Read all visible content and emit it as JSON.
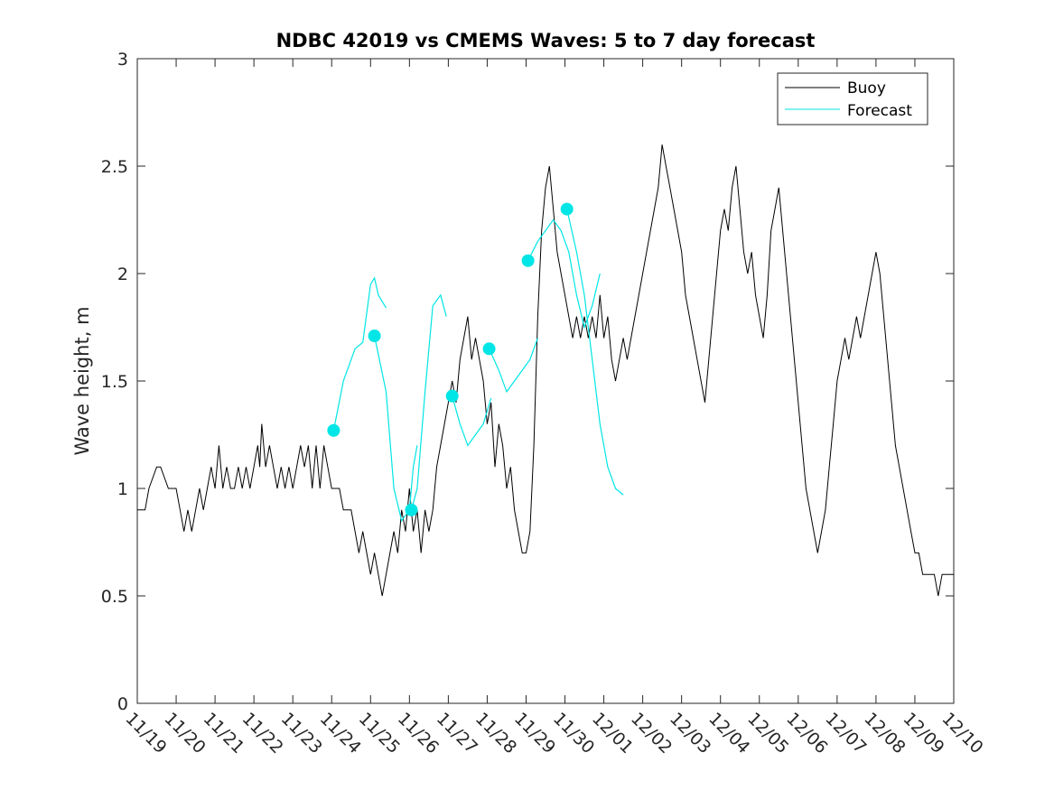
{
  "chart_data": {
    "type": "line",
    "title": "NDBC 42019 vs CMEMS Waves: 5 to 7 day forecast",
    "xlabel": "",
    "ylabel": "Wave height, m",
    "xlim": [
      0,
      21
    ],
    "ylim": [
      0,
      3
    ],
    "yticks": [
      0,
      0.5,
      1,
      1.5,
      2,
      2.5,
      3
    ],
    "ytick_labels": [
      "0",
      "0.5",
      "1",
      "1.5",
      "2",
      "2.5",
      "3"
    ],
    "xtick_labels": [
      "11/19",
      "11/20",
      "11/21",
      "11/22",
      "11/23",
      "11/24",
      "11/25",
      "11/26",
      "11/27",
      "11/28",
      "11/29",
      "11/30",
      "12/01",
      "12/02",
      "12/03",
      "12/04",
      "12/05",
      "12/06",
      "12/07",
      "12/08",
      "12/09",
      "12/10"
    ],
    "legend": {
      "position": "top-right",
      "entries": [
        "Buoy",
        "Forecast"
      ]
    },
    "colors": {
      "buoy": "#000000",
      "forecast": "#00e5e5",
      "axis": "#262626"
    },
    "buoy": {
      "name": "Buoy",
      "points": [
        [
          0,
          0.9
        ],
        [
          0.2,
          0.9
        ],
        [
          0.3,
          1.0
        ],
        [
          0.5,
          1.1
        ],
        [
          0.6,
          1.1
        ],
        [
          0.8,
          1.0
        ],
        [
          1.0,
          1.0
        ],
        [
          1.1,
          0.9
        ],
        [
          1.2,
          0.8
        ],
        [
          1.3,
          0.9
        ],
        [
          1.4,
          0.8
        ],
        [
          1.5,
          0.9
        ],
        [
          1.6,
          1.0
        ],
        [
          1.7,
          0.9
        ],
        [
          1.8,
          1.0
        ],
        [
          1.9,
          1.1
        ],
        [
          2.0,
          1.0
        ],
        [
          2.1,
          1.2
        ],
        [
          2.2,
          1.0
        ],
        [
          2.3,
          1.1
        ],
        [
          2.4,
          1.0
        ],
        [
          2.5,
          1.0
        ],
        [
          2.6,
          1.1
        ],
        [
          2.7,
          1.0
        ],
        [
          2.8,
          1.1
        ],
        [
          2.9,
          1.0
        ],
        [
          3.0,
          1.1
        ],
        [
          3.1,
          1.2
        ],
        [
          3.15,
          1.1
        ],
        [
          3.2,
          1.3
        ],
        [
          3.3,
          1.1
        ],
        [
          3.4,
          1.2
        ],
        [
          3.5,
          1.1
        ],
        [
          3.6,
          1.0
        ],
        [
          3.7,
          1.1
        ],
        [
          3.8,
          1.0
        ],
        [
          3.9,
          1.1
        ],
        [
          4.0,
          1.0
        ],
        [
          4.1,
          1.1
        ],
        [
          4.2,
          1.2
        ],
        [
          4.3,
          1.1
        ],
        [
          4.4,
          1.2
        ],
        [
          4.5,
          1.0
        ],
        [
          4.6,
          1.2
        ],
        [
          4.7,
          1.0
        ],
        [
          4.8,
          1.2
        ],
        [
          4.9,
          1.1
        ],
        [
          5.0,
          1.0
        ],
        [
          5.2,
          1.0
        ],
        [
          5.3,
          0.9
        ],
        [
          5.5,
          0.9
        ],
        [
          5.6,
          0.8
        ],
        [
          5.7,
          0.7
        ],
        [
          5.8,
          0.8
        ],
        [
          5.9,
          0.7
        ],
        [
          6.0,
          0.6
        ],
        [
          6.1,
          0.7
        ],
        [
          6.2,
          0.6
        ],
        [
          6.3,
          0.5
        ],
        [
          6.4,
          0.6
        ],
        [
          6.5,
          0.7
        ],
        [
          6.6,
          0.8
        ],
        [
          6.7,
          0.7
        ],
        [
          6.8,
          0.9
        ],
        [
          6.9,
          0.8
        ],
        [
          7.0,
          1.0
        ],
        [
          7.1,
          0.8
        ],
        [
          7.2,
          0.9
        ],
        [
          7.3,
          0.7
        ],
        [
          7.4,
          0.9
        ],
        [
          7.5,
          0.8
        ],
        [
          7.6,
          0.9
        ],
        [
          7.7,
          1.1
        ],
        [
          7.8,
          1.2
        ],
        [
          7.9,
          1.3
        ],
        [
          8.0,
          1.4
        ],
        [
          8.1,
          1.5
        ],
        [
          8.2,
          1.4
        ],
        [
          8.3,
          1.6
        ],
        [
          8.4,
          1.7
        ],
        [
          8.5,
          1.8
        ],
        [
          8.6,
          1.6
        ],
        [
          8.7,
          1.7
        ],
        [
          8.8,
          1.6
        ],
        [
          8.9,
          1.5
        ],
        [
          9.0,
          1.3
        ],
        [
          9.1,
          1.4
        ],
        [
          9.2,
          1.1
        ],
        [
          9.3,
          1.3
        ],
        [
          9.4,
          1.2
        ],
        [
          9.5,
          1.0
        ],
        [
          9.6,
          1.1
        ],
        [
          9.7,
          0.9
        ],
        [
          9.8,
          0.8
        ],
        [
          9.9,
          0.7
        ],
        [
          10.0,
          0.7
        ],
        [
          10.1,
          0.8
        ],
        [
          10.2,
          1.2
        ],
        [
          10.3,
          1.8
        ],
        [
          10.4,
          2.2
        ],
        [
          10.5,
          2.4
        ],
        [
          10.6,
          2.5
        ],
        [
          10.7,
          2.3
        ],
        [
          10.8,
          2.1
        ],
        [
          10.9,
          2.0
        ],
        [
          11.0,
          1.9
        ],
        [
          11.1,
          1.8
        ],
        [
          11.2,
          1.7
        ],
        [
          11.3,
          1.8
        ],
        [
          11.4,
          1.7
        ],
        [
          11.5,
          1.8
        ],
        [
          11.6,
          1.7
        ],
        [
          11.7,
          1.8
        ],
        [
          11.8,
          1.7
        ],
        [
          11.9,
          1.9
        ],
        [
          12.0,
          1.7
        ],
        [
          12.1,
          1.8
        ],
        [
          12.2,
          1.6
        ],
        [
          12.3,
          1.5
        ],
        [
          12.4,
          1.6
        ],
        [
          12.5,
          1.7
        ],
        [
          12.6,
          1.6
        ],
        [
          12.7,
          1.7
        ],
        [
          12.8,
          1.8
        ],
        [
          12.9,
          1.9
        ],
        [
          13.0,
          2.0
        ],
        [
          13.1,
          2.1
        ],
        [
          13.2,
          2.2
        ],
        [
          13.3,
          2.3
        ],
        [
          13.4,
          2.4
        ],
        [
          13.5,
          2.6
        ],
        [
          13.6,
          2.5
        ],
        [
          13.7,
          2.4
        ],
        [
          13.8,
          2.3
        ],
        [
          13.9,
          2.2
        ],
        [
          14.0,
          2.1
        ],
        [
          14.1,
          1.9
        ],
        [
          14.2,
          1.8
        ],
        [
          14.3,
          1.7
        ],
        [
          14.4,
          1.6
        ],
        [
          14.5,
          1.5
        ],
        [
          14.6,
          1.4
        ],
        [
          14.7,
          1.6
        ],
        [
          14.8,
          1.8
        ],
        [
          14.9,
          2.0
        ],
        [
          15.0,
          2.2
        ],
        [
          15.1,
          2.3
        ],
        [
          15.2,
          2.2
        ],
        [
          15.3,
          2.4
        ],
        [
          15.4,
          2.5
        ],
        [
          15.5,
          2.3
        ],
        [
          15.6,
          2.1
        ],
        [
          15.7,
          2.0
        ],
        [
          15.8,
          2.1
        ],
        [
          15.9,
          1.9
        ],
        [
          16.0,
          1.8
        ],
        [
          16.1,
          1.7
        ],
        [
          16.2,
          1.9
        ],
        [
          16.3,
          2.2
        ],
        [
          16.4,
          2.3
        ],
        [
          16.5,
          2.4
        ],
        [
          16.6,
          2.2
        ],
        [
          16.7,
          2.0
        ],
        [
          16.8,
          1.8
        ],
        [
          16.9,
          1.6
        ],
        [
          17.0,
          1.4
        ],
        [
          17.1,
          1.2
        ],
        [
          17.2,
          1.0
        ],
        [
          17.3,
          0.9
        ],
        [
          17.4,
          0.8
        ],
        [
          17.5,
          0.7
        ],
        [
          17.6,
          0.8
        ],
        [
          17.7,
          0.9
        ],
        [
          17.8,
          1.1
        ],
        [
          17.9,
          1.3
        ],
        [
          18.0,
          1.5
        ],
        [
          18.1,
          1.6
        ],
        [
          18.2,
          1.7
        ],
        [
          18.3,
          1.6
        ],
        [
          18.4,
          1.7
        ],
        [
          18.5,
          1.8
        ],
        [
          18.6,
          1.7
        ],
        [
          18.7,
          1.8
        ],
        [
          18.8,
          1.9
        ],
        [
          18.9,
          2.0
        ],
        [
          19.0,
          2.1
        ],
        [
          19.1,
          2.0
        ],
        [
          19.2,
          1.8
        ],
        [
          19.3,
          1.6
        ],
        [
          19.4,
          1.4
        ],
        [
          19.5,
          1.2
        ],
        [
          19.6,
          1.1
        ],
        [
          19.7,
          1.0
        ],
        [
          19.8,
          0.9
        ],
        [
          19.9,
          0.8
        ],
        [
          20.0,
          0.7
        ],
        [
          20.1,
          0.7
        ],
        [
          20.2,
          0.6
        ],
        [
          20.3,
          0.6
        ],
        [
          20.4,
          0.6
        ],
        [
          20.5,
          0.6
        ],
        [
          20.6,
          0.5
        ],
        [
          20.7,
          0.6
        ],
        [
          20.8,
          0.6
        ],
        [
          20.9,
          0.6
        ],
        [
          21.0,
          0.6
        ]
      ]
    },
    "forecast": {
      "name": "Forecast",
      "segments": [
        [
          [
            5.05,
            1.27
          ],
          [
            5.3,
            1.5
          ],
          [
            5.6,
            1.65
          ],
          [
            5.8,
            1.68
          ],
          [
            6.0,
            1.95
          ],
          [
            6.1,
            1.98
          ],
          [
            6.2,
            1.9
          ],
          [
            6.4,
            1.84
          ]
        ],
        [
          [
            6.1,
            1.71
          ],
          [
            6.4,
            1.45
          ],
          [
            6.6,
            1.0
          ],
          [
            6.8,
            0.85
          ],
          [
            7.0,
            0.9
          ],
          [
            7.1,
            1.1
          ],
          [
            7.2,
            1.2
          ]
        ],
        [
          [
            7.05,
            0.9
          ],
          [
            7.2,
            1.0
          ],
          [
            7.4,
            1.45
          ],
          [
            7.6,
            1.85
          ],
          [
            7.8,
            1.9
          ],
          [
            7.95,
            1.8
          ]
        ],
        [
          [
            8.1,
            1.43
          ],
          [
            8.3,
            1.3
          ],
          [
            8.5,
            1.2
          ],
          [
            8.7,
            1.25
          ],
          [
            8.9,
            1.3
          ],
          [
            9.1,
            1.42
          ]
        ],
        [
          [
            9.05,
            1.65
          ],
          [
            9.3,
            1.55
          ],
          [
            9.5,
            1.45
          ],
          [
            9.7,
            1.5
          ],
          [
            9.9,
            1.55
          ],
          [
            10.1,
            1.6
          ],
          [
            10.3,
            1.7
          ]
        ],
        [
          [
            10.05,
            2.06
          ],
          [
            10.3,
            2.15
          ],
          [
            10.5,
            2.2
          ],
          [
            10.7,
            2.25
          ],
          [
            10.9,
            2.2
          ],
          [
            11.1,
            2.1
          ],
          [
            11.3,
            1.9
          ],
          [
            11.5,
            1.75
          ],
          [
            11.7,
            1.85
          ],
          [
            11.9,
            2.0
          ]
        ],
        [
          [
            11.05,
            2.3
          ],
          [
            11.3,
            2.1
          ],
          [
            11.5,
            1.9
          ],
          [
            11.7,
            1.6
          ],
          [
            11.9,
            1.3
          ],
          [
            12.1,
            1.1
          ],
          [
            12.3,
            1.0
          ],
          [
            12.5,
            0.97
          ]
        ]
      ],
      "markers": [
        [
          5.05,
          1.27
        ],
        [
          6.1,
          1.71
        ],
        [
          7.05,
          0.9
        ],
        [
          8.1,
          1.43
        ],
        [
          9.05,
          1.65
        ],
        [
          10.05,
          2.06
        ],
        [
          11.05,
          2.3
        ]
      ]
    }
  }
}
